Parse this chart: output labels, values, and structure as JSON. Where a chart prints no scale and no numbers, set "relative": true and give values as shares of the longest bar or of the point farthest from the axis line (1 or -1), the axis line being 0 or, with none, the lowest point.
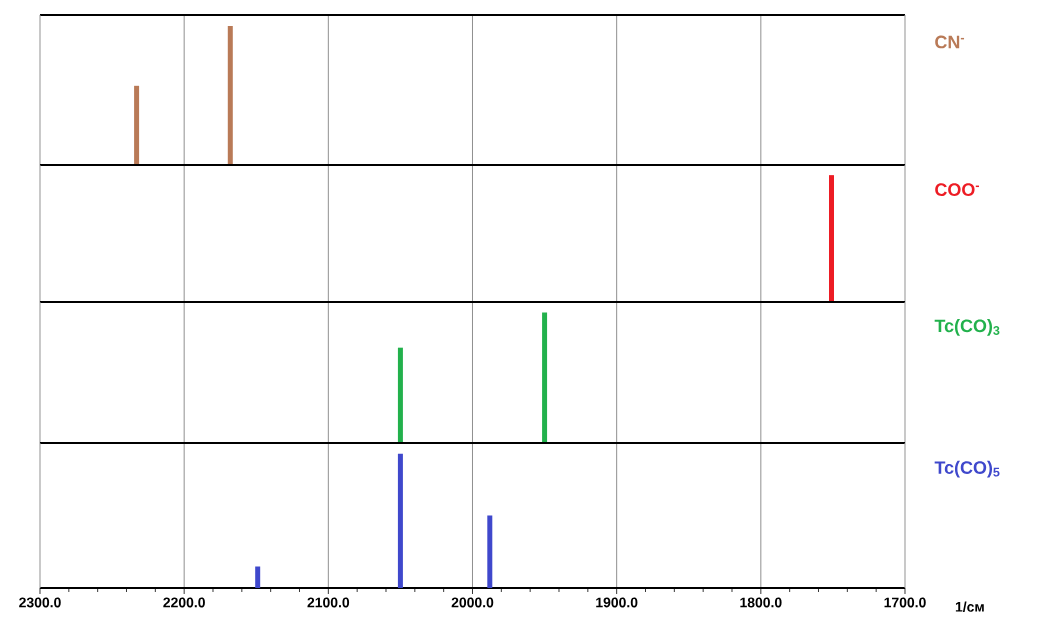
{
  "chart_data": [
    {
      "type": "bar",
      "x": [
        2233,
        2168
      ],
      "relative": true,
      "xlim": [
        2300,
        1700
      ],
      "grid": "x",
      "tick_labels": false,
      "xticks": [
        2300,
        2200,
        2100,
        2000,
        1900,
        1800,
        1700
      ],
      "series": [
        {
          "name": "CN$^{-}$",
          "color": "#b97a57",
          "values": [
            0.57,
            1
          ]
        }
      ]
    },
    {
      "type": "bar",
      "x": [
        1751
      ],
      "relative": true,
      "xlim": [
        2300,
        1700
      ],
      "grid": "x",
      "tick_labels": false,
      "xticks": [
        2300,
        2200,
        2100,
        2000,
        1900,
        1800,
        1700
      ],
      "series": [
        {
          "name": "COO$^{-}$",
          "color": "#ed1c24",
          "values": [
            1
          ]
        }
      ]
    },
    {
      "type": "bar",
      "x": [
        2050,
        1950
      ],
      "relative": true,
      "xlim": [
        2300,
        1700
      ],
      "grid": "x",
      "tick_labels": false,
      "xticks": [
        2300,
        2200,
        2100,
        2000,
        1900,
        1800,
        1700
      ],
      "series": [
        {
          "name": "Tc(CO)$_{3}$",
          "color": "#22b14c",
          "values": [
            0.73,
            1
          ]
        }
      ]
    },
    {
      "type": "bar",
      "x": [
        2149,
        2050,
        1988
      ],
      "relative": true,
      "xlim": [
        2300,
        1700
      ],
      "grid": "x",
      "xlabel": "1/см",
      "xticks": [
        {
          "value": 2300,
          "label": "2300.0"
        },
        {
          "value": 2200,
          "label": "2200.0"
        },
        {
          "value": 2100,
          "label": "2100.0"
        },
        {
          "value": 2000,
          "label": "2000.0"
        },
        {
          "value": 1900,
          "label": "1900.0"
        },
        {
          "value": 1800,
          "label": "1800.0"
        },
        {
          "value": 1700,
          "label": "1700.0"
        }
      ],
      "series": [
        {
          "name": "Tc(CO)$_{5}$",
          "color": "#3f48cc",
          "values": [
            0.16,
            1,
            0.54
          ]
        }
      ]
    }
  ]
}
